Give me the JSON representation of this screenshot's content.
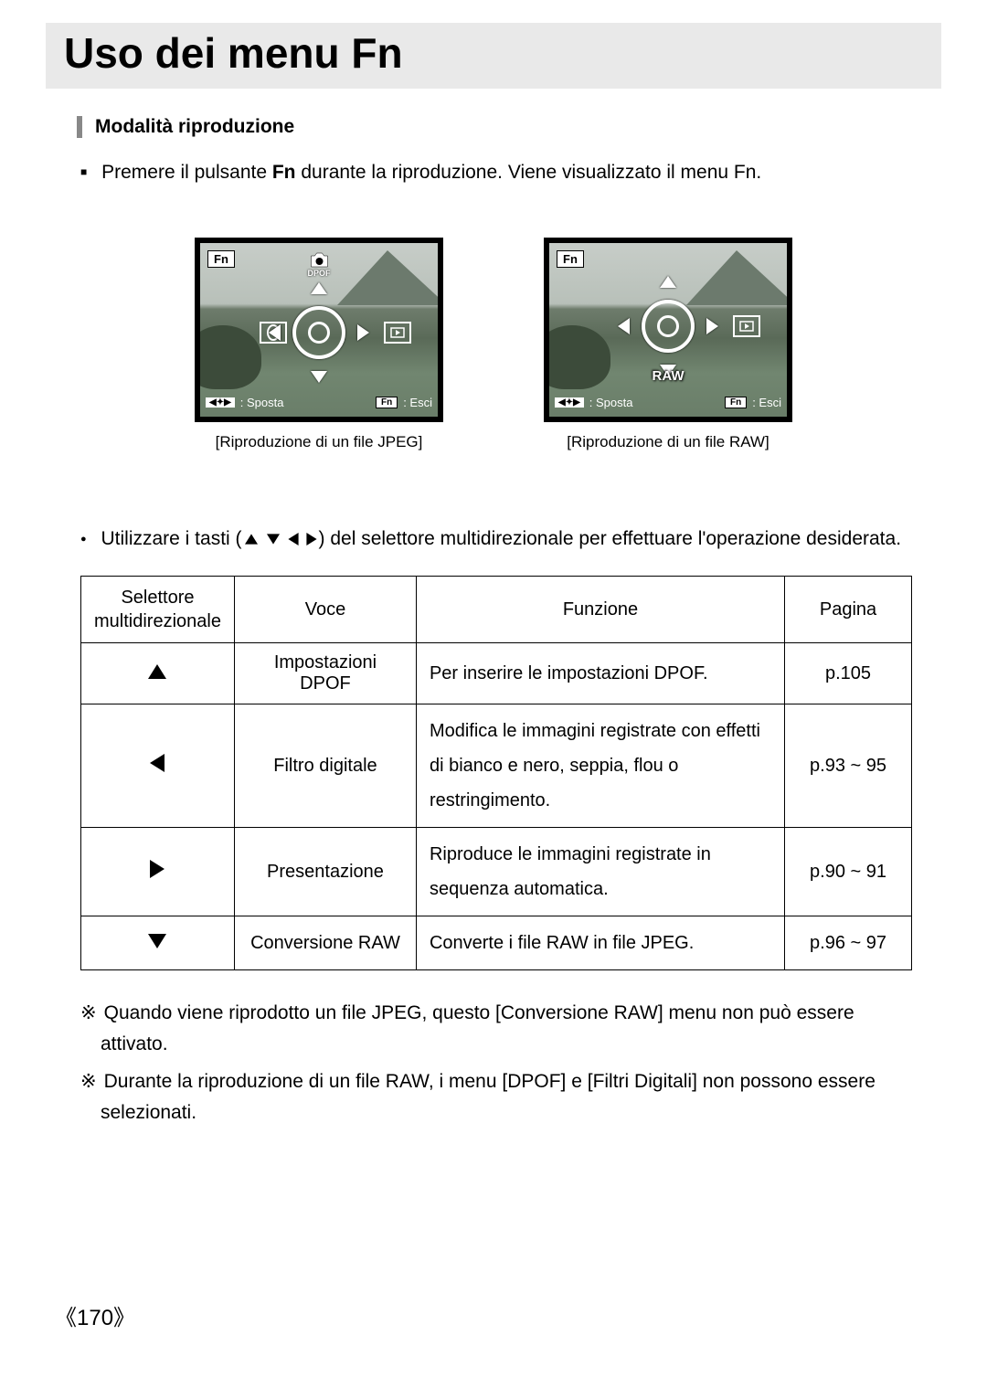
{
  "page": {
    "title": "Uso dei menu Fn",
    "number": "《170》"
  },
  "section": {
    "heading": "Modalità riproduzione",
    "intro_prefix": "Premere il pulsante ",
    "intro_bold": "Fn",
    "intro_suffix": " durante la riproduzione. Viene visualizzato il menu Fn."
  },
  "screens": {
    "jpeg": {
      "fn_label": "Fn",
      "dpof_label": "DPOF",
      "move_label": ": Sposta",
      "exit_label": ": Esci",
      "exit_btn": "Fn",
      "caption": "[Riproduzione di un file JPEG]"
    },
    "raw": {
      "fn_label": "Fn",
      "raw_label": "RAW",
      "move_label": ": Sposta",
      "exit_label": ": Esci",
      "exit_btn": "Fn",
      "caption": "[Riproduzione di un file RAW]"
    }
  },
  "instruction": {
    "prefix": "Utilizzare i tasti (",
    "suffix": ") del selettore multidirezionale per effettuare l'operazione desiderata."
  },
  "table": {
    "headers": {
      "selector": "Selettore multidirezionale",
      "item": "Voce",
      "function": "Funzione",
      "page": "Pagina"
    },
    "rows": [
      {
        "dir": "up",
        "item": "Impostazioni DPOF",
        "func": "Per inserire le impostazioni DPOF.",
        "page": "p.105"
      },
      {
        "dir": "left",
        "item": "Filtro digitale",
        "func": "Modifica le immagini registrate con effetti di bianco e nero, seppia, flou o restringimento.",
        "page": "p.93 ~ 95"
      },
      {
        "dir": "right",
        "item": "Presentazione",
        "func": "Riproduce le immagini registrate in sequenza automatica.",
        "page": "p.90 ~ 91"
      },
      {
        "dir": "down",
        "item": "Conversione RAW",
        "func": "Converte i file RAW in file JPEG.",
        "page": "p.96 ~ 97"
      }
    ]
  },
  "notes": [
    "Quando viene riprodotto un file JPEG, questo [Conversione RAW] menu non può essere attivato.",
    "Durante la riproduzione di un file RAW, i menu [DPOF] e [Filtri Digitali] non possono essere selezionati."
  ]
}
